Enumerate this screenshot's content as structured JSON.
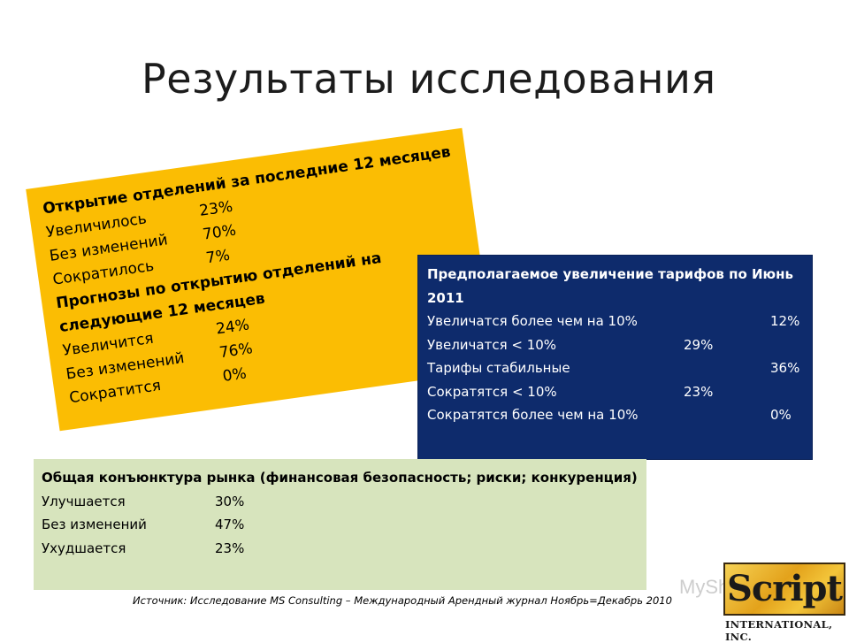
{
  "title": "Результаты исследования",
  "gold_box": {
    "header1": "Открытие отделений за последние 12 месяцев",
    "rows1": [
      {
        "label": "Увеличилось",
        "value": "23%"
      },
      {
        "label": "Без изменений",
        "value": "70%"
      },
      {
        "label": "Сократилось",
        "value": "7%"
      }
    ],
    "header2": "Прогнозы по открытию отделений на следующие 12 месяцев",
    "rows2": [
      {
        "label": "Увеличится",
        "value": "24%"
      },
      {
        "label": "Без изменений",
        "value": "76%"
      },
      {
        "label": "Сократится",
        "value": "0%"
      }
    ]
  },
  "navy_box": {
    "header": "Предполагаемое увеличение тарифов по Июнь 2011",
    "rows": [
      {
        "label": "Увеличатся более чем на 10%",
        "value": "12%"
      },
      {
        "label": "Увеличатся < 10%",
        "value": "29%"
      },
      {
        "label": "Тарифы стабильные",
        "value": "36%"
      },
      {
        "label": "Сократятся < 10%",
        "value": "23%"
      },
      {
        "label": "Сократятся более чем на 10%",
        "value": "0%"
      }
    ]
  },
  "green_box": {
    "header": "Общая конъюнктура рынка (финансовая безопасность; риски; конкуренция)",
    "rows": [
      {
        "label": "Улучшается",
        "value": "30%"
      },
      {
        "label": "Без изменений",
        "value": "47%"
      },
      {
        "label": "Ухудшается",
        "value": "23%"
      }
    ]
  },
  "source": "Источник: Исследование MS Consulting – Международный Арендный журнал Ноябрь=Декабрь 2010",
  "watermark": "MyShared",
  "logo": {
    "word": "Script",
    "sub": "INTERNATIONAL, INC."
  },
  "colors": {
    "gold": "#fbbd03",
    "navy": "#0e2b6c",
    "green": "#d7e4bd"
  }
}
